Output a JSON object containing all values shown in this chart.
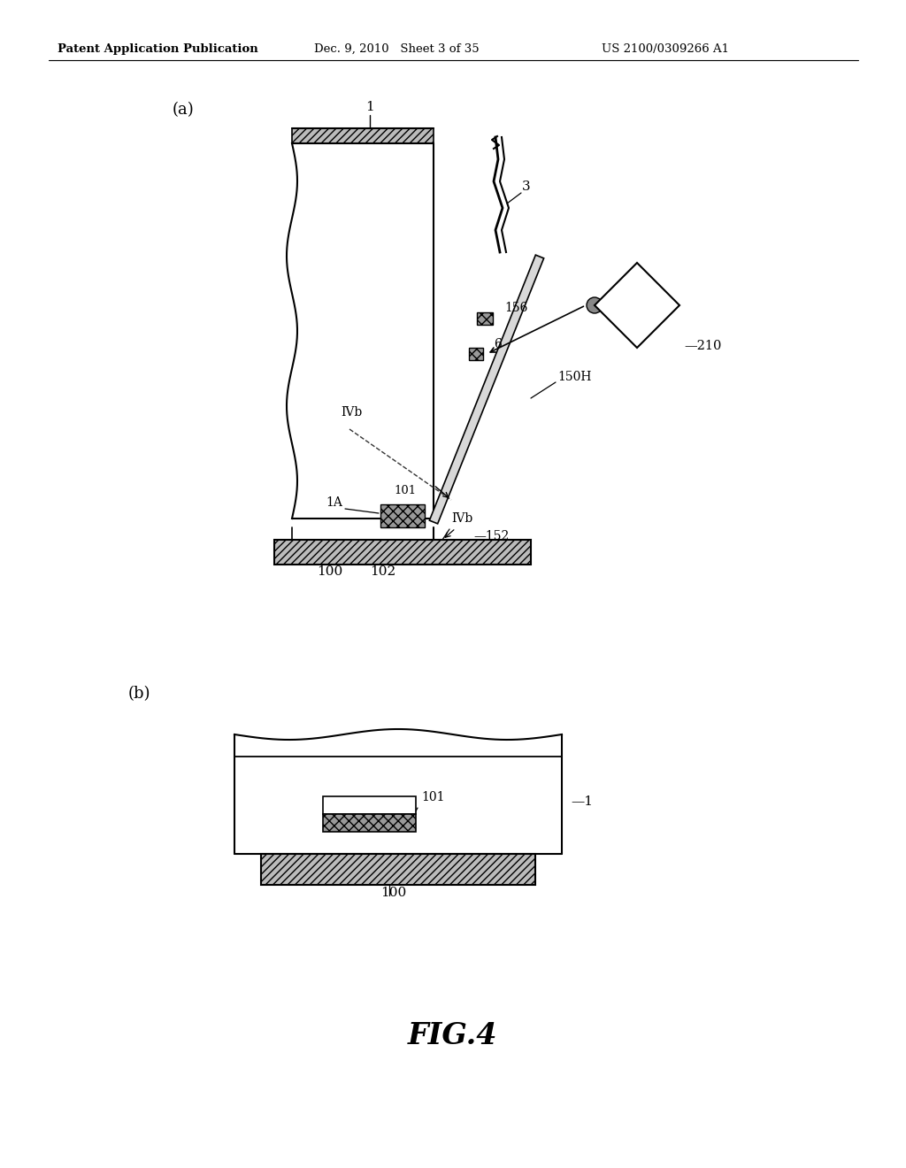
{
  "bg_color": "#ffffff",
  "header_left": "Patent Application Publication",
  "header_mid": "Dec. 9, 2010   Sheet 3 of 35",
  "header_right": "US 2100/0309266 A1",
  "fig_label": "FIG.4",
  "panel_a_label": "(a)",
  "panel_b_label": "(b)",
  "lc": "#000000",
  "gray_dark": "#888888",
  "gray_mid": "#aaaaaa",
  "gray_light": "#cccccc"
}
